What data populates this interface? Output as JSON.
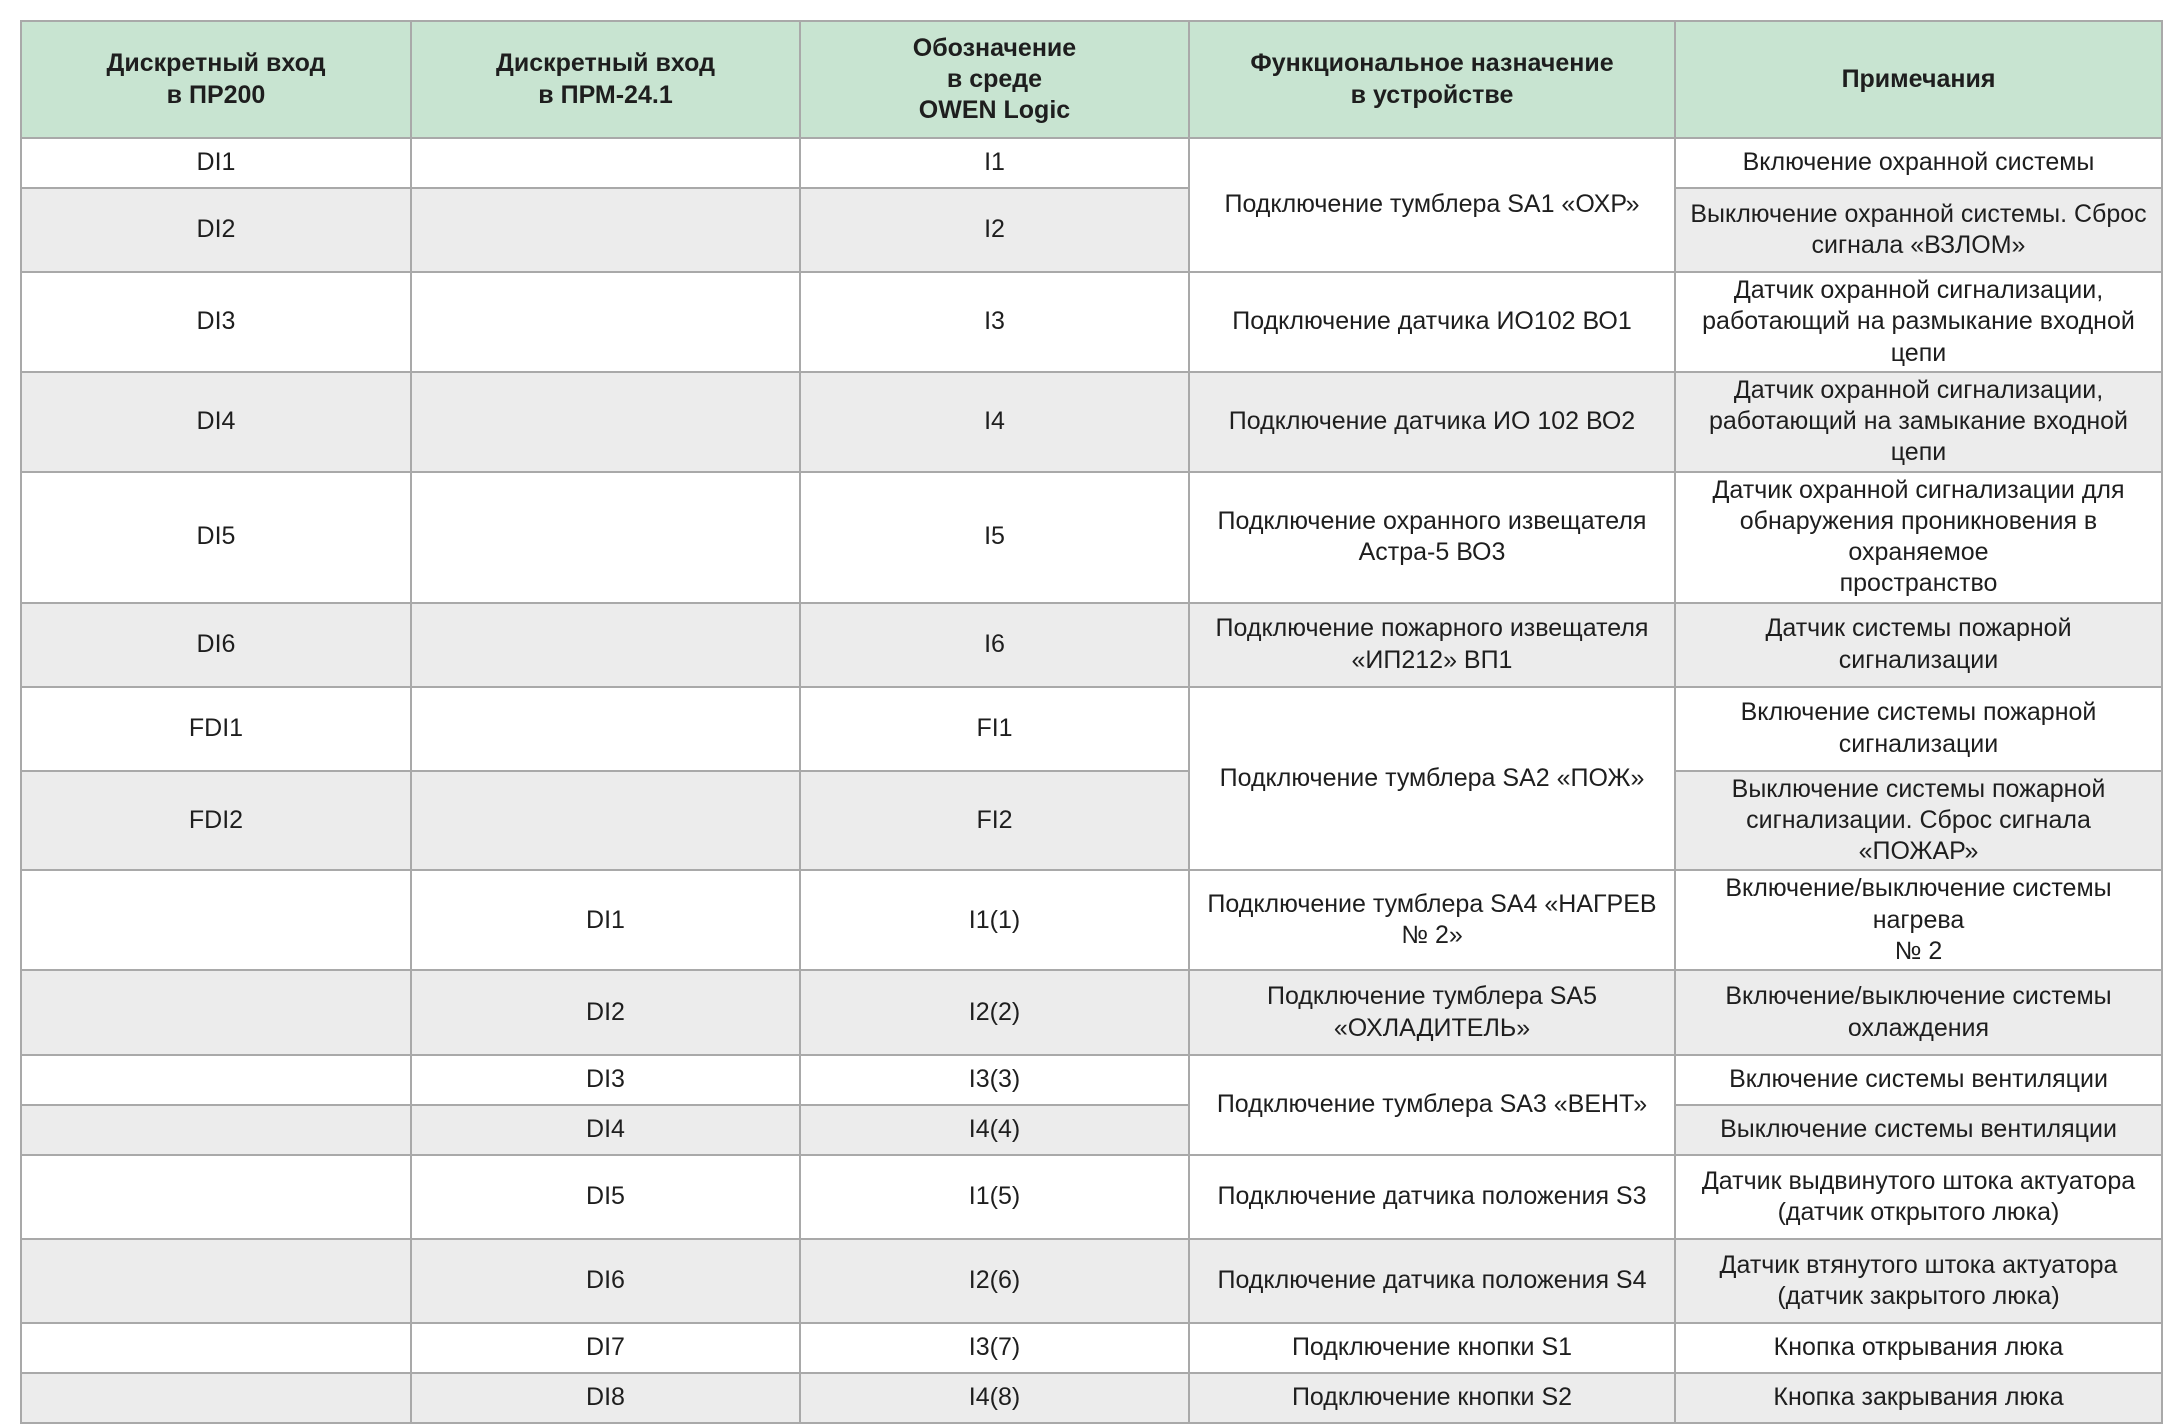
{
  "table": {
    "headers": [
      "Дискретный вход\nв ПР200",
      "Дискретный вход\nв ПРМ-24.1",
      "Обозначение\nв среде\nOWEN Logic",
      "Функциональное назначение\nв устройстве",
      "Примечания"
    ],
    "rows": [
      {
        "pr200": "DI1",
        "prm": "",
        "owen": "I1",
        "func": "Подключение тумблера SA1 «ОХР»",
        "note": "Включение охранной системы"
      },
      {
        "pr200": "DI2",
        "prm": "",
        "owen": "I2",
        "note": "Выключение охранной системы. Сброс\nсигнала «ВЗЛОМ»"
      },
      {
        "pr200": "DI3",
        "prm": "",
        "owen": "I3",
        "func": "Подключение датчика ИО102 ВО1",
        "note": "Датчик охранной сигнализации,\nработающий на размыкание входной цепи"
      },
      {
        "pr200": "DI4",
        "prm": "",
        "owen": "I4",
        "func": "Подключение датчика ИО 102 ВО2",
        "note": "Датчик охранной сигнализации,\nработающий на замыкание входной цепи"
      },
      {
        "pr200": "DI5",
        "prm": "",
        "owen": "I5",
        "func": "Подключение охранного извещателя\nАстра-5 ВО3",
        "note": "Датчик охранной сигнализации для\nобнаружения проникновения в охраняемое\nпространство"
      },
      {
        "pr200": "DI6",
        "prm": "",
        "owen": "I6",
        "func": "Подключение пожарного извещателя\n«ИП212» ВП1",
        "note": "Датчик системы пожарной сигнализации"
      },
      {
        "pr200": "FDI1",
        "prm": "",
        "owen": "FI1",
        "func": "Подключение тумблера SA2 «ПОЖ»",
        "note": "Включение системы пожарной\nсигнализации"
      },
      {
        "pr200": "FDI2",
        "prm": "",
        "owen": "FI2",
        "note": "Выключение системы пожарной\nсигнализации. Сброс сигнала «ПОЖАР»"
      },
      {
        "pr200": "",
        "prm": "DI1",
        "owen": "I1(1)",
        "func": "Подключение тумблера SA4 «НАГРЕВ № 2»",
        "note": "Включение/выключение системы нагрева\n№ 2"
      },
      {
        "pr200": "",
        "prm": "DI2",
        "owen": "I2(2)",
        "func": "Подключение тумблера SA5 «ОХЛАДИТЕЛЬ»",
        "note": "Включение/выключение системы\nохлаждения"
      },
      {
        "pr200": "",
        "prm": "DI3",
        "owen": "I3(3)",
        "func": "Подключение тумблера SA3 «ВЕНТ»",
        "note": "Включение системы вентиляции"
      },
      {
        "pr200": "",
        "prm": "DI4",
        "owen": "I4(4)",
        "note": "Выключение системы вентиляции"
      },
      {
        "pr200": "",
        "prm": "DI5",
        "owen": "I1(5)",
        "func": "Подключение датчика положения S3",
        "note": "Датчик выдвинутого штока актуатора\n(датчик открытого люка)"
      },
      {
        "pr200": "",
        "prm": "DI6",
        "owen": "I2(6)",
        "func": "Подключение датчика положения S4",
        "note": "Датчик втянутого штока актуатора\n(датчик закрытого люка)"
      },
      {
        "pr200": "",
        "prm": "DI7",
        "owen": "I3(7)",
        "func": "Подключение кнопки S1",
        "note": "Кнопка открывания люка"
      },
      {
        "pr200": "",
        "prm": "DI8",
        "owen": "I4(8)",
        "func": "Подключение кнопки S2",
        "note": "Кнопка закрывания люка"
      }
    ]
  }
}
